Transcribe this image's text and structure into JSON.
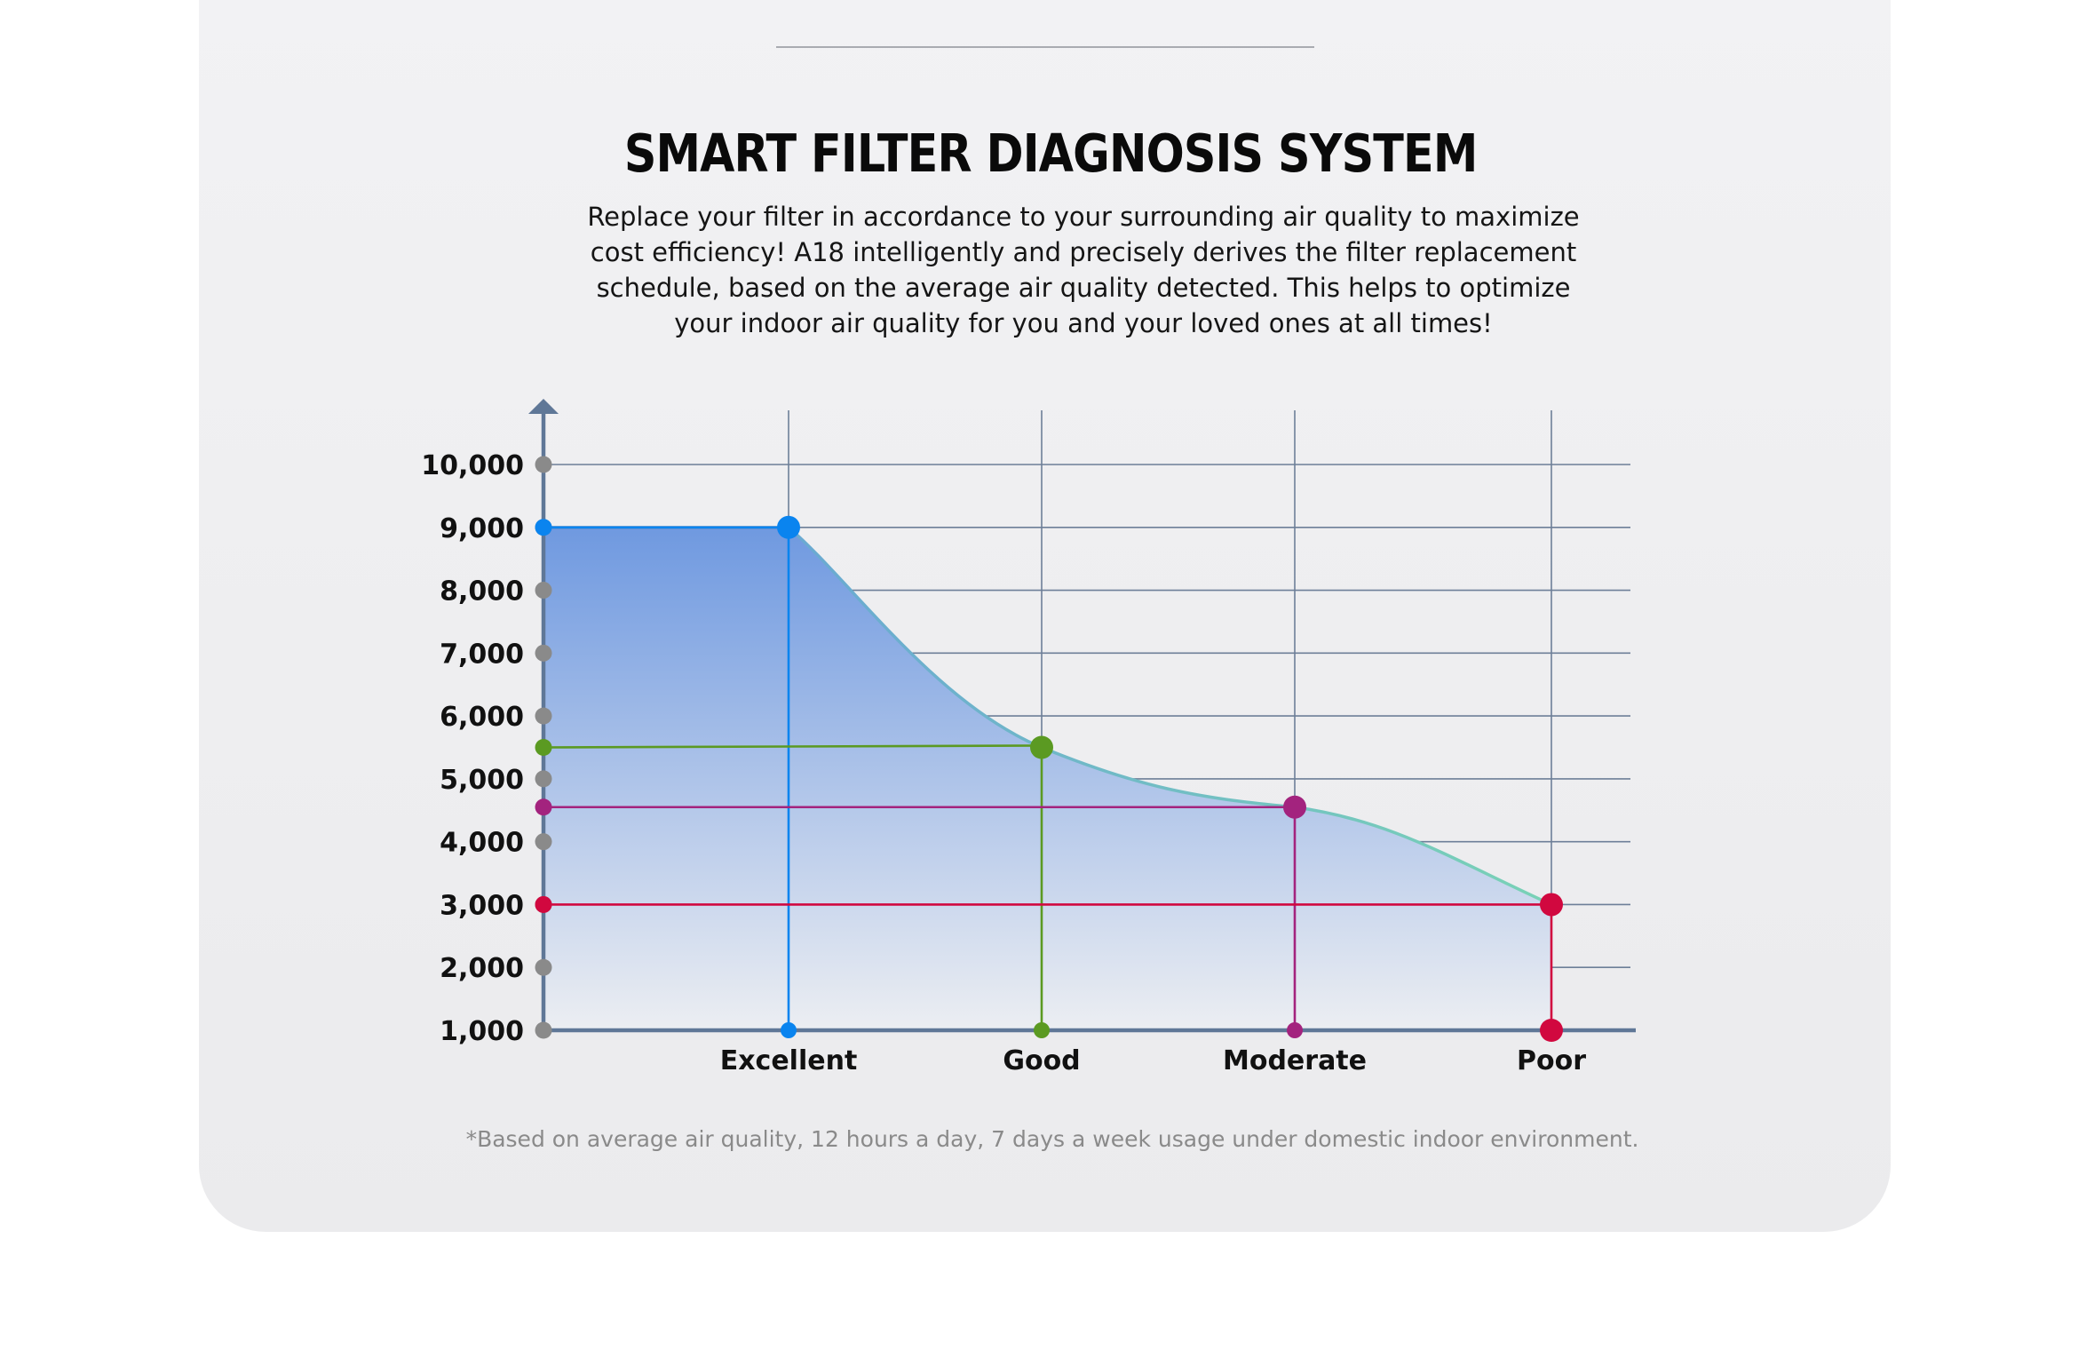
{
  "header": {
    "title": "SMART FILTER DIAGNOSIS SYSTEM",
    "description": "Replace your filter in accordance to your surrounding air quality to maximize\ncost efficiency! A18 intelligently and precisely derives the filter replacement\nschedule, based on the average air quality detected. This helps to optimize\nyour indoor air quality for you and your loved ones at all times!"
  },
  "footnote": "*Based on average air quality, 12 hours a day, 7 days a week usage under domestic indoor environment.",
  "chart_data": {
    "type": "area",
    "title": "",
    "xlabel": "",
    "ylabel": "",
    "categories": [
      "Excellent",
      "Good",
      "Moderate",
      "Poor"
    ],
    "values": [
      9000,
      5500,
      4550,
      3000
    ],
    "ylim": [
      1000,
      10000
    ],
    "yticks": [
      1000,
      2000,
      3000,
      4000,
      5000,
      6000,
      7000,
      8000,
      9000,
      10000
    ],
    "ytick_labels": [
      "1,000",
      "2,000",
      "3,000",
      "4,000",
      "5,000",
      "6,000",
      "7,000",
      "8,000",
      "9,000",
      "10,000"
    ],
    "grid": true,
    "legend": "none",
    "point_colors": [
      "#0a84ef",
      "#5b9a22",
      "#a3237e",
      "#d1083f"
    ],
    "axis_color": "#5f7797",
    "tick_dot_color": "#8a8a8a",
    "curve_colors": [
      "#6aa9d2",
      "#79d2b6"
    ],
    "fill_colors": [
      "#6f99e0",
      "#eceef2"
    ]
  }
}
